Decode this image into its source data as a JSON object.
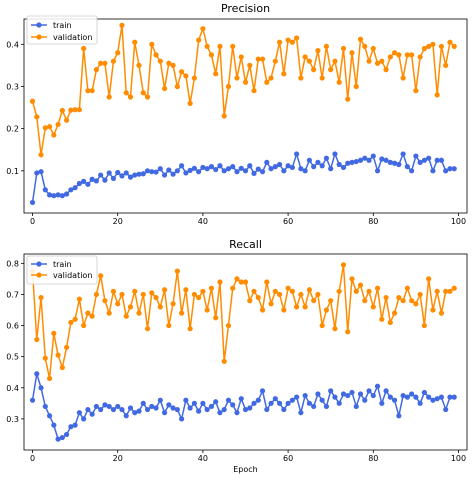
{
  "colors": {
    "train": "#4169e1",
    "validation": "#ff8c00"
  },
  "chart_data": [
    {
      "type": "line",
      "title": "Precision",
      "xlabel": "",
      "ylabel": "",
      "xlim": [
        -2,
        102
      ],
      "ylim": [
        0.0,
        0.46
      ],
      "xticks": [
        0,
        20,
        40,
        60,
        80,
        100
      ],
      "xtick_labels": [
        "0",
        "20",
        "40",
        "60",
        "80",
        "100"
      ],
      "yticks": [
        0.1,
        0.2,
        0.3,
        0.4
      ],
      "ytick_labels": [
        "0.1",
        "0.2",
        "0.3",
        "0.4"
      ],
      "legend_position": "top-left",
      "grid": false,
      "series": [
        {
          "name": "train",
          "x": [
            0,
            1,
            2,
            3,
            4,
            5,
            6,
            7,
            8,
            9,
            10,
            11,
            12,
            13,
            14,
            15,
            16,
            17,
            18,
            19,
            20,
            21,
            22,
            23,
            24,
            25,
            26,
            27,
            28,
            29,
            30,
            31,
            32,
            33,
            34,
            35,
            36,
            37,
            38,
            39,
            40,
            41,
            42,
            43,
            44,
            45,
            46,
            47,
            48,
            49,
            50,
            51,
            52,
            53,
            54,
            55,
            56,
            57,
            58,
            59,
            60,
            61,
            62,
            63,
            64,
            65,
            66,
            67,
            68,
            69,
            70,
            71,
            72,
            73,
            74,
            75,
            76,
            77,
            78,
            79,
            80,
            81,
            82,
            83,
            84,
            85,
            86,
            87,
            88,
            89,
            90,
            91,
            92,
            93,
            94,
            95,
            96,
            97,
            98,
            99
          ],
          "values": [
            0.025,
            0.095,
            0.098,
            0.055,
            0.043,
            0.041,
            0.043,
            0.041,
            0.045,
            0.055,
            0.06,
            0.07,
            0.075,
            0.068,
            0.08,
            0.076,
            0.09,
            0.078,
            0.095,
            0.082,
            0.096,
            0.088,
            0.095,
            0.085,
            0.09,
            0.092,
            0.093,
            0.1,
            0.098,
            0.097,
            0.105,
            0.09,
            0.102,
            0.092,
            0.1,
            0.112,
            0.095,
            0.101,
            0.106,
            0.098,
            0.108,
            0.105,
            0.11,
            0.103,
            0.112,
            0.1,
            0.105,
            0.11,
            0.098,
            0.106,
            0.1,
            0.112,
            0.094,
            0.104,
            0.098,
            0.12,
            0.105,
            0.11,
            0.115,
            0.1,
            0.112,
            0.108,
            0.14,
            0.105,
            0.1,
            0.125,
            0.11,
            0.12,
            0.112,
            0.13,
            0.105,
            0.14,
            0.115,
            0.108,
            0.118,
            0.12,
            0.122,
            0.125,
            0.13,
            0.125,
            0.135,
            0.1,
            0.128,
            0.125,
            0.12,
            0.118,
            0.115,
            0.14,
            0.11,
            0.1,
            0.135,
            0.12,
            0.125,
            0.13,
            0.1,
            0.125,
            0.125,
            0.1,
            0.105,
            0.105
          ]
        },
        {
          "name": "validation",
          "x": [
            0,
            1,
            2,
            3,
            4,
            5,
            6,
            7,
            8,
            9,
            10,
            11,
            12,
            13,
            14,
            15,
            16,
            17,
            18,
            19,
            20,
            21,
            22,
            23,
            24,
            25,
            26,
            27,
            28,
            29,
            30,
            31,
            32,
            33,
            34,
            35,
            36,
            37,
            38,
            39,
            40,
            41,
            42,
            43,
            44,
            45,
            46,
            47,
            48,
            49,
            50,
            51,
            52,
            53,
            54,
            55,
            56,
            57,
            58,
            59,
            60,
            61,
            62,
            63,
            64,
            65,
            66,
            67,
            68,
            69,
            70,
            71,
            72,
            73,
            74,
            75,
            76,
            77,
            78,
            79,
            80,
            81,
            82,
            83,
            84,
            85,
            86,
            87,
            88,
            89,
            90,
            91,
            92,
            93,
            94,
            95,
            96,
            97,
            98,
            99
          ],
          "values": [
            0.265,
            0.228,
            0.138,
            0.202,
            0.205,
            0.185,
            0.21,
            0.243,
            0.22,
            0.244,
            0.245,
            0.245,
            0.39,
            0.29,
            0.29,
            0.34,
            0.355,
            0.355,
            0.275,
            0.36,
            0.38,
            0.445,
            0.285,
            0.275,
            0.405,
            0.35,
            0.285,
            0.275,
            0.4,
            0.375,
            0.36,
            0.295,
            0.355,
            0.35,
            0.3,
            0.335,
            0.325,
            0.26,
            0.32,
            0.41,
            0.437,
            0.395,
            0.375,
            0.33,
            0.395,
            0.23,
            0.3,
            0.395,
            0.32,
            0.37,
            0.31,
            0.35,
            0.29,
            0.365,
            0.365,
            0.31,
            0.32,
            0.36,
            0.405,
            0.33,
            0.41,
            0.405,
            0.415,
            0.32,
            0.37,
            0.36,
            0.34,
            0.385,
            0.32,
            0.395,
            0.34,
            0.36,
            0.31,
            0.39,
            0.27,
            0.38,
            0.3,
            0.412,
            0.395,
            0.36,
            0.39,
            0.355,
            0.36,
            0.34,
            0.37,
            0.38,
            0.375,
            0.32,
            0.375,
            0.375,
            0.29,
            0.37,
            0.39,
            0.395,
            0.4,
            0.28,
            0.395,
            0.35,
            0.405,
            0.395
          ]
        }
      ]
    },
    {
      "type": "line",
      "title": "Recall",
      "xlabel": "Epoch",
      "ylabel": "",
      "xlim": [
        -2,
        102
      ],
      "ylim": [
        0.2,
        0.83
      ],
      "xticks": [
        0,
        20,
        40,
        60,
        80,
        100
      ],
      "xtick_labels": [
        "0",
        "20",
        "40",
        "60",
        "80",
        "100"
      ],
      "yticks": [
        0.3,
        0.4,
        0.5,
        0.6,
        0.7,
        0.8
      ],
      "ytick_labels": [
        "0.3",
        "0.4",
        "0.5",
        "0.6",
        "0.7",
        "0.8"
      ],
      "legend_position": "top-left",
      "grid": false,
      "series": [
        {
          "name": "train",
          "x": [
            0,
            1,
            2,
            3,
            4,
            5,
            6,
            7,
            8,
            9,
            10,
            11,
            12,
            13,
            14,
            15,
            16,
            17,
            18,
            19,
            20,
            21,
            22,
            23,
            24,
            25,
            26,
            27,
            28,
            29,
            30,
            31,
            32,
            33,
            34,
            35,
            36,
            37,
            38,
            39,
            40,
            41,
            42,
            43,
            44,
            45,
            46,
            47,
            48,
            49,
            50,
            51,
            52,
            53,
            54,
            55,
            56,
            57,
            58,
            59,
            60,
            61,
            62,
            63,
            64,
            65,
            66,
            67,
            68,
            69,
            70,
            71,
            72,
            73,
            74,
            75,
            76,
            77,
            78,
            79,
            80,
            81,
            82,
            83,
            84,
            85,
            86,
            87,
            88,
            89,
            90,
            91,
            92,
            93,
            94,
            95,
            96,
            97,
            98,
            99
          ],
          "values": [
            0.36,
            0.445,
            0.4,
            0.34,
            0.31,
            0.28,
            0.235,
            0.24,
            0.25,
            0.275,
            0.28,
            0.32,
            0.3,
            0.33,
            0.315,
            0.34,
            0.33,
            0.345,
            0.34,
            0.33,
            0.34,
            0.33,
            0.31,
            0.335,
            0.32,
            0.325,
            0.35,
            0.33,
            0.34,
            0.335,
            0.36,
            0.32,
            0.345,
            0.335,
            0.33,
            0.3,
            0.36,
            0.335,
            0.35,
            0.325,
            0.35,
            0.33,
            0.34,
            0.355,
            0.32,
            0.33,
            0.36,
            0.345,
            0.32,
            0.365,
            0.33,
            0.335,
            0.35,
            0.36,
            0.39,
            0.33,
            0.35,
            0.365,
            0.35,
            0.33,
            0.35,
            0.36,
            0.37,
            0.32,
            0.375,
            0.35,
            0.34,
            0.38,
            0.36,
            0.34,
            0.39,
            0.37,
            0.35,
            0.38,
            0.375,
            0.385,
            0.34,
            0.38,
            0.36,
            0.39,
            0.375,
            0.405,
            0.35,
            0.39,
            0.37,
            0.36,
            0.31,
            0.375,
            0.37,
            0.38,
            0.37,
            0.35,
            0.385,
            0.37,
            0.36,
            0.365,
            0.37,
            0.33,
            0.37,
            0.37
          ]
        },
        {
          "name": "validation",
          "x": [
            0,
            1,
            2,
            3,
            4,
            5,
            6,
            7,
            8,
            9,
            10,
            11,
            12,
            13,
            14,
            15,
            16,
            17,
            18,
            19,
            20,
            21,
            22,
            23,
            24,
            25,
            26,
            27,
            28,
            29,
            30,
            31,
            32,
            33,
            34,
            35,
            36,
            37,
            38,
            39,
            40,
            41,
            42,
            43,
            44,
            45,
            46,
            47,
            48,
            49,
            50,
            51,
            52,
            53,
            54,
            55,
            56,
            57,
            58,
            59,
            60,
            61,
            62,
            63,
            64,
            65,
            66,
            67,
            68,
            69,
            70,
            71,
            72,
            73,
            74,
            75,
            76,
            77,
            78,
            79,
            80,
            81,
            82,
            83,
            84,
            85,
            86,
            87,
            88,
            89,
            90,
            91,
            92,
            93,
            94,
            95,
            96,
            97,
            98,
            99
          ],
          "values": [
            0.775,
            0.555,
            0.69,
            0.495,
            0.43,
            0.575,
            0.505,
            0.465,
            0.53,
            0.61,
            0.62,
            0.685,
            0.6,
            0.64,
            0.63,
            0.7,
            0.76,
            0.68,
            0.64,
            0.71,
            0.67,
            0.7,
            0.63,
            0.66,
            0.71,
            0.64,
            0.7,
            0.59,
            0.705,
            0.69,
            0.66,
            0.715,
            0.6,
            0.67,
            0.775,
            0.64,
            0.715,
            0.59,
            0.7,
            0.69,
            0.71,
            0.65,
            0.72,
            0.625,
            0.74,
            0.485,
            0.6,
            0.72,
            0.75,
            0.74,
            0.74,
            0.68,
            0.71,
            0.69,
            0.65,
            0.74,
            0.67,
            0.71,
            0.7,
            0.65,
            0.72,
            0.71,
            0.66,
            0.7,
            0.66,
            0.715,
            0.68,
            0.7,
            0.6,
            0.65,
            0.68,
            0.59,
            0.71,
            0.795,
            0.58,
            0.75,
            0.71,
            0.73,
            0.68,
            0.71,
            0.66,
            0.72,
            0.62,
            0.69,
            0.61,
            0.64,
            0.69,
            0.68,
            0.72,
            0.68,
            0.67,
            0.7,
            0.6,
            0.75,
            0.65,
            0.71,
            0.64,
            0.71,
            0.71,
            0.72
          ]
        }
      ]
    }
  ]
}
